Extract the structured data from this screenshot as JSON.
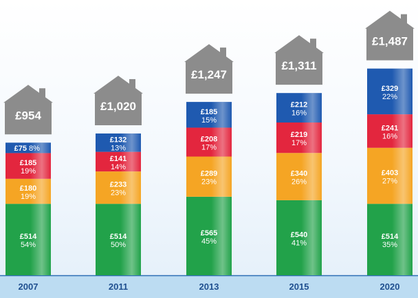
{
  "chart_data": {
    "type": "bar",
    "stacked": true,
    "categories": [
      "2007",
      "2011",
      "2013",
      "2015",
      "2020"
    ],
    "totals": [
      "£954",
      "£1,020",
      "£1,247",
      "£1,311",
      "£1,487"
    ],
    "total_values": [
      954,
      1020,
      1247,
      1311,
      1487
    ],
    "series": [
      {
        "color": "#22a24a",
        "values": [
          514,
          514,
          565,
          540,
          514
        ],
        "labels": [
          "£514",
          "£514",
          "£565",
          "£540",
          "£514"
        ],
        "pcts": [
          "54%",
          "50%",
          "45%",
          "41%",
          "35%"
        ]
      },
      {
        "color": "#f5a524",
        "values": [
          180,
          233,
          289,
          340,
          403
        ],
        "labels": [
          "£180",
          "£233",
          "£289",
          "£340",
          "£403"
        ],
        "pcts": [
          "19%",
          "23%",
          "23%",
          "26%",
          "27%"
        ]
      },
      {
        "color": "#e3263e",
        "values": [
          185,
          141,
          208,
          219,
          241
        ],
        "labels": [
          "£185",
          "£141",
          "£208",
          "£219",
          "£241"
        ],
        "pcts": [
          "19%",
          "14%",
          "17%",
          "17%",
          "16%"
        ]
      },
      {
        "color": "#1f5ab0",
        "values": [
          75,
          132,
          185,
          212,
          329
        ],
        "labels": [
          "£75",
          "£132",
          "£185",
          "£212",
          "£329"
        ],
        "pcts": [
          "8%",
          "13%",
          "15%",
          "16%",
          "22%"
        ]
      }
    ],
    "house_color": "#8c8c8c",
    "year_bar_color": "#bcdcf2",
    "axis_color": "#2e6fb5"
  }
}
